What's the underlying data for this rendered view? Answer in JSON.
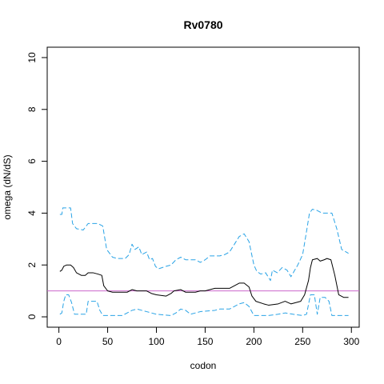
{
  "chart_data": {
    "type": "line",
    "title": "Rv0780",
    "xlabel": "codon",
    "ylabel": "omega (dN/dS)",
    "xlim": [
      -12,
      308
    ],
    "ylim": [
      -0.4,
      10.4
    ],
    "xticks": [
      0,
      50,
      100,
      150,
      200,
      250,
      300
    ],
    "yticks": [
      0,
      2,
      4,
      6,
      8,
      10
    ],
    "grid": false,
    "legend": "none",
    "reference_line": {
      "y": 1,
      "color": "#cc66cc"
    },
    "series": [
      {
        "role": "upper",
        "color": "#29a3e6",
        "style": "dashed",
        "points": [
          [
            1,
            3.95
          ],
          [
            3,
            3.95
          ],
          [
            4,
            4.2
          ],
          [
            12,
            4.2
          ],
          [
            14,
            3.6
          ],
          [
            18,
            3.4
          ],
          [
            25,
            3.35
          ],
          [
            30,
            3.6
          ],
          [
            40,
            3.6
          ],
          [
            45,
            3.5
          ],
          [
            49,
            2.6
          ],
          [
            55,
            2.3
          ],
          [
            60,
            2.25
          ],
          [
            68,
            2.25
          ],
          [
            72,
            2.4
          ],
          [
            75,
            2.8
          ],
          [
            78,
            2.6
          ],
          [
            82,
            2.7
          ],
          [
            85,
            2.4
          ],
          [
            90,
            2.5
          ],
          [
            93,
            2.2
          ],
          [
            96,
            2.25
          ],
          [
            99,
            1.95
          ],
          [
            102,
            1.85
          ],
          [
            110,
            1.95
          ],
          [
            115,
            2.0
          ],
          [
            120,
            2.2
          ],
          [
            125,
            2.3
          ],
          [
            130,
            2.2
          ],
          [
            140,
            2.2
          ],
          [
            145,
            2.1
          ],
          [
            150,
            2.2
          ],
          [
            155,
            2.35
          ],
          [
            165,
            2.35
          ],
          [
            170,
            2.4
          ],
          [
            175,
            2.5
          ],
          [
            180,
            2.8
          ],
          [
            185,
            3.1
          ],
          [
            190,
            3.2
          ],
          [
            195,
            2.9
          ],
          [
            200,
            2.0
          ],
          [
            203,
            1.75
          ],
          [
            207,
            1.65
          ],
          [
            212,
            1.7
          ],
          [
            217,
            1.4
          ],
          [
            219,
            1.8
          ],
          [
            224,
            1.7
          ],
          [
            229,
            1.9
          ],
          [
            234,
            1.8
          ],
          [
            238,
            1.55
          ],
          [
            245,
            2.0
          ],
          [
            250,
            2.4
          ],
          [
            254,
            3.3
          ],
          [
            257,
            4.0
          ],
          [
            260,
            4.15
          ],
          [
            265,
            4.1
          ],
          [
            270,
            4.0
          ],
          [
            275,
            4.0
          ],
          [
            280,
            4.0
          ],
          [
            285,
            3.4
          ],
          [
            290,
            2.6
          ],
          [
            297,
            2.45
          ]
        ]
      },
      {
        "role": "mean",
        "color": "#000000",
        "style": "solid",
        "points": [
          [
            1,
            1.75
          ],
          [
            3,
            1.8
          ],
          [
            5,
            1.95
          ],
          [
            8,
            2.0
          ],
          [
            12,
            2.0
          ],
          [
            15,
            1.9
          ],
          [
            18,
            1.7
          ],
          [
            23,
            1.6
          ],
          [
            27,
            1.6
          ],
          [
            30,
            1.7
          ],
          [
            35,
            1.7
          ],
          [
            40,
            1.65
          ],
          [
            44,
            1.6
          ],
          [
            46,
            1.2
          ],
          [
            50,
            1.0
          ],
          [
            55,
            0.95
          ],
          [
            70,
            0.95
          ],
          [
            75,
            1.05
          ],
          [
            80,
            1.0
          ],
          [
            90,
            1.0
          ],
          [
            95,
            0.9
          ],
          [
            100,
            0.85
          ],
          [
            110,
            0.8
          ],
          [
            115,
            0.9
          ],
          [
            118,
            1.0
          ],
          [
            125,
            1.05
          ],
          [
            130,
            0.95
          ],
          [
            140,
            0.95
          ],
          [
            145,
            1.0
          ],
          [
            150,
            1.0
          ],
          [
            160,
            1.1
          ],
          [
            170,
            1.1
          ],
          [
            175,
            1.1
          ],
          [
            180,
            1.2
          ],
          [
            185,
            1.3
          ],
          [
            190,
            1.3
          ],
          [
            195,
            1.15
          ],
          [
            198,
            0.8
          ],
          [
            202,
            0.6
          ],
          [
            210,
            0.5
          ],
          [
            215,
            0.45
          ],
          [
            225,
            0.5
          ],
          [
            232,
            0.6
          ],
          [
            238,
            0.5
          ],
          [
            248,
            0.6
          ],
          [
            252,
            0.85
          ],
          [
            256,
            1.4
          ],
          [
            258,
            1.9
          ],
          [
            260,
            2.2
          ],
          [
            265,
            2.25
          ],
          [
            268,
            2.15
          ],
          [
            272,
            2.2
          ],
          [
            275,
            2.25
          ],
          [
            279,
            2.2
          ],
          [
            283,
            1.6
          ],
          [
            287,
            0.85
          ],
          [
            292,
            0.75
          ],
          [
            297,
            0.75
          ]
        ]
      },
      {
        "role": "lower",
        "color": "#29a3e6",
        "style": "dashed",
        "points": [
          [
            1,
            0.1
          ],
          [
            3,
            0.15
          ],
          [
            5,
            0.6
          ],
          [
            7,
            0.85
          ],
          [
            10,
            0.85
          ],
          [
            13,
            0.55
          ],
          [
            16,
            0.1
          ],
          [
            28,
            0.1
          ],
          [
            30,
            0.6
          ],
          [
            39,
            0.6
          ],
          [
            42,
            0.25
          ],
          [
            45,
            0.05
          ],
          [
            65,
            0.05
          ],
          [
            70,
            0.15
          ],
          [
            75,
            0.25
          ],
          [
            80,
            0.3
          ],
          [
            85,
            0.25
          ],
          [
            90,
            0.2
          ],
          [
            95,
            0.15
          ],
          [
            100,
            0.1
          ],
          [
            115,
            0.05
          ],
          [
            120,
            0.15
          ],
          [
            125,
            0.3
          ],
          [
            130,
            0.25
          ],
          [
            135,
            0.1
          ],
          [
            140,
            0.15
          ],
          [
            145,
            0.2
          ],
          [
            160,
            0.25
          ],
          [
            165,
            0.3
          ],
          [
            175,
            0.3
          ],
          [
            180,
            0.4
          ],
          [
            185,
            0.5
          ],
          [
            190,
            0.55
          ],
          [
            195,
            0.4
          ],
          [
            200,
            0.05
          ],
          [
            215,
            0.05
          ],
          [
            225,
            0.1
          ],
          [
            232,
            0.15
          ],
          [
            240,
            0.1
          ],
          [
            250,
            0.05
          ],
          [
            254,
            0.1
          ],
          [
            258,
            0.85
          ],
          [
            262,
            0.85
          ],
          [
            265,
            0.1
          ],
          [
            268,
            0.75
          ],
          [
            273,
            0.75
          ],
          [
            277,
            0.6
          ],
          [
            280,
            0.05
          ],
          [
            297,
            0.05
          ]
        ]
      }
    ]
  }
}
